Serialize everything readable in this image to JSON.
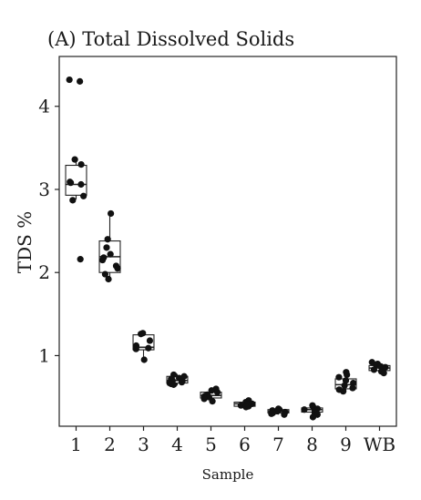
{
  "chart_data": {
    "type": "boxplot",
    "title": "(A) Total Dissolved Solids",
    "xlabel": "Sample",
    "ylabel": "TDS %",
    "ylim": [
      0.15,
      4.6
    ],
    "yticks": [
      1,
      2,
      3,
      4
    ],
    "grid": false,
    "categories": [
      "1",
      "2",
      "3",
      "4",
      "5",
      "6",
      "7",
      "8",
      "9",
      "WB"
    ],
    "boxes": [
      {
        "category": "1",
        "min": 2.88,
        "q1": 2.93,
        "median": 3.06,
        "q3": 3.29,
        "max": 3.36,
        "points": [
          4.3,
          4.32,
          3.36,
          3.3,
          3.08,
          3.06,
          3.09,
          2.92,
          2.87,
          2.16
        ]
      },
      {
        "category": "2",
        "min": 1.94,
        "q1": 2.0,
        "median": 2.19,
        "q3": 2.38,
        "max": 2.71,
        "points": [
          2.71,
          2.4,
          2.3,
          2.22,
          2.18,
          2.15,
          2.08,
          1.98,
          1.92,
          2.05
        ]
      },
      {
        "category": "3",
        "min": 0.96,
        "q1": 1.07,
        "median": 1.1,
        "q3": 1.25,
        "max": 1.27,
        "points": [
          1.27,
          1.26,
          1.18,
          1.12,
          1.09,
          1.08,
          0.95
        ]
      },
      {
        "category": "4",
        "min": 0.64,
        "q1": 0.67,
        "median": 0.7,
        "q3": 0.75,
        "max": 0.78,
        "points": [
          0.77,
          0.75,
          0.73,
          0.72,
          0.7,
          0.69,
          0.68,
          0.67,
          0.66,
          0.65
        ]
      },
      {
        "category": "5",
        "min": 0.44,
        "q1": 0.49,
        "median": 0.52,
        "q3": 0.56,
        "max": 0.6,
        "points": [
          0.6,
          0.58,
          0.56,
          0.53,
          0.52,
          0.51,
          0.5,
          0.48,
          0.45
        ]
      },
      {
        "category": "6",
        "min": 0.38,
        "q1": 0.39,
        "median": 0.42,
        "q3": 0.44,
        "max": 0.46,
        "points": [
          0.46,
          0.44,
          0.43,
          0.42,
          0.41,
          0.4,
          0.39,
          0.38
        ]
      },
      {
        "category": "7",
        "min": 0.29,
        "q1": 0.31,
        "median": 0.33,
        "q3": 0.35,
        "max": 0.36,
        "points": [
          0.36,
          0.35,
          0.34,
          0.33,
          0.32,
          0.31,
          0.3,
          0.29
        ]
      },
      {
        "category": "8",
        "min": 0.27,
        "q1": 0.32,
        "median": 0.35,
        "q3": 0.37,
        "max": 0.4,
        "points": [
          0.4,
          0.38,
          0.36,
          0.35,
          0.34,
          0.32,
          0.29,
          0.26
        ]
      },
      {
        "category": "9",
        "min": 0.56,
        "q1": 0.6,
        "median": 0.65,
        "q3": 0.72,
        "max": 0.8,
        "points": [
          0.8,
          0.77,
          0.74,
          0.7,
          0.67,
          0.64,
          0.61,
          0.59,
          0.57
        ]
      },
      {
        "category": "WB",
        "min": 0.78,
        "q1": 0.82,
        "median": 0.85,
        "q3": 0.88,
        "max": 0.92,
        "points": [
          0.92,
          0.9,
          0.89,
          0.87,
          0.86,
          0.85,
          0.83,
          0.81,
          0.79
        ]
      }
    ]
  }
}
